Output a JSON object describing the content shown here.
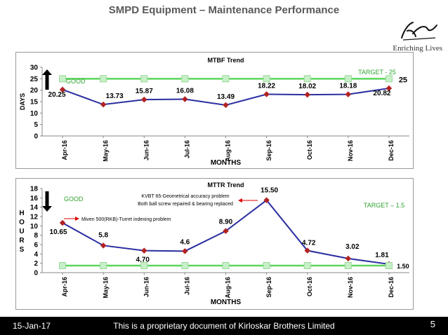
{
  "slide": {
    "title": "SMPD Equipment – Maintenance Performance",
    "brand_logo_text": "Kirloskar",
    "tagline": "Enriching Lives"
  },
  "footer": {
    "date": "15-Jan-17",
    "text": "This is a proprietary document of Kirloskar Brothers Limited",
    "page": "5"
  },
  "chart_data": [
    {
      "id": "mtbf",
      "type": "line",
      "title": "MTBF Trend",
      "xlabel": "MONTHS",
      "ylabel": "DAYS",
      "ylim": [
        0,
        30
      ],
      "yticks": [
        0,
        5,
        10,
        15,
        20,
        25,
        30
      ],
      "categories": [
        "Apr-16",
        "May-16",
        "Jun-16",
        "Jul-16",
        "Aug-16",
        "Sep-16",
        "Oct-16",
        "Nov-16",
        "Dec-16"
      ],
      "series": [
        {
          "name": "MTBF",
          "values": [
            20.25,
            13.73,
            15.87,
            16.08,
            13.49,
            18.22,
            18.02,
            18.18,
            20.82
          ],
          "labels": [
            "20.25",
            "13.73",
            "15.87",
            "16.08",
            "13.49",
            "18.22",
            "18.02",
            "18.18",
            "20.82"
          ],
          "color": "#2b2fa0"
        },
        {
          "name": "Target",
          "values": [
            25,
            25,
            25,
            25,
            25,
            25,
            25,
            25,
            25
          ],
          "color": "#5bd65b",
          "end_label": "25"
        }
      ],
      "target_label": "TARGET - 25",
      "good_label": "GOOD",
      "good_direction": "up",
      "annotations": []
    },
    {
      "id": "mttr",
      "type": "line",
      "title": "MTTR Trend",
      "xlabel": "MONTHS",
      "ylabel": "HOURS",
      "ylabel_letters": [
        "H",
        "O",
        "U",
        "R",
        "S"
      ],
      "ylim": [
        0,
        18
      ],
      "yticks": [
        0,
        2,
        4,
        6,
        8,
        10,
        12,
        14,
        16,
        18
      ],
      "categories": [
        "Apr-16",
        "May-16",
        "Jun-16",
        "Jul-16",
        "Aug-16",
        "Sep-16",
        "Oct-16",
        "Nov-16",
        "Dec-16"
      ],
      "series": [
        {
          "name": "MTTR",
          "values": [
            10.65,
            5.8,
            4.7,
            4.6,
            8.9,
            15.5,
            4.72,
            3.02,
            1.81
          ],
          "labels": [
            "10.65",
            "5.8",
            "4.70",
            "4.6",
            "8.90",
            "15.50",
            "4.72",
            "3.02",
            "1.81"
          ],
          "color": "#2b2fa0"
        },
        {
          "name": "Target",
          "values": [
            1.5,
            1.5,
            1.5,
            1.5,
            1.5,
            1.5,
            1.5,
            1.5,
            1.5
          ],
          "color": "#5bd65b",
          "end_label": "1.50"
        }
      ],
      "target_label": "TARGET – 1.5",
      "good_label": "GOOD",
      "good_direction": "down",
      "annotations": [
        {
          "text": "Miven 500(RKB)-Turret indexing problem"
        },
        {
          "text": "KVBT 65-Geometrical accuracy problem"
        },
        {
          "text": "Both ball screw repaired & bearing replaced"
        }
      ]
    }
  ]
}
